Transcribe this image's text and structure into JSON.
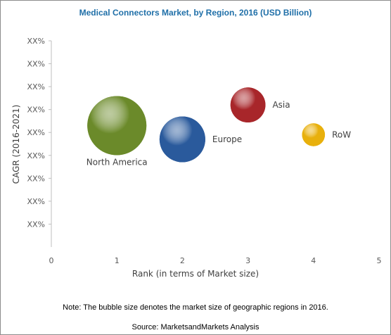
{
  "chart_data": {
    "type": "scatter",
    "title": "Medical Connectors Market, by Region, 2016 (USD Billion)",
    "xlabel": "Rank (in terms of Market size)",
    "ylabel": "CAGR (2016-2021)",
    "xlim": [
      0,
      5
    ],
    "x_ticks": [
      "0",
      "1",
      "2",
      "3",
      "4",
      "5"
    ],
    "y_ticks": [
      "XX%",
      "XX%",
      "XX%",
      "XX%",
      "XX%",
      "XX%",
      "XX%",
      "XX%",
      "XX%"
    ],
    "grid": false,
    "legend": "none",
    "points": [
      {
        "label": "North America",
        "x": 1,
        "y": 5.3,
        "size": 4.0,
        "color": "#6b8a2a",
        "label_position": "bottom"
      },
      {
        "label": "Europe",
        "x": 2,
        "y": 4.7,
        "size": 2.4,
        "color": "#2a5a9c",
        "label_position": "right"
      },
      {
        "label": "Asia",
        "x": 3,
        "y": 6.2,
        "size": 1.4,
        "color": "#a8262a",
        "label_position": "right"
      },
      {
        "label": "RoW",
        "x": 4,
        "y": 4.9,
        "size": 0.6,
        "color": "#e8b00c",
        "label_position": "right"
      }
    ]
  },
  "note": "Note: The bubble size denotes the market size of geographic regions in 2016.",
  "source": "Source: MarketsandMarkets Analysis"
}
